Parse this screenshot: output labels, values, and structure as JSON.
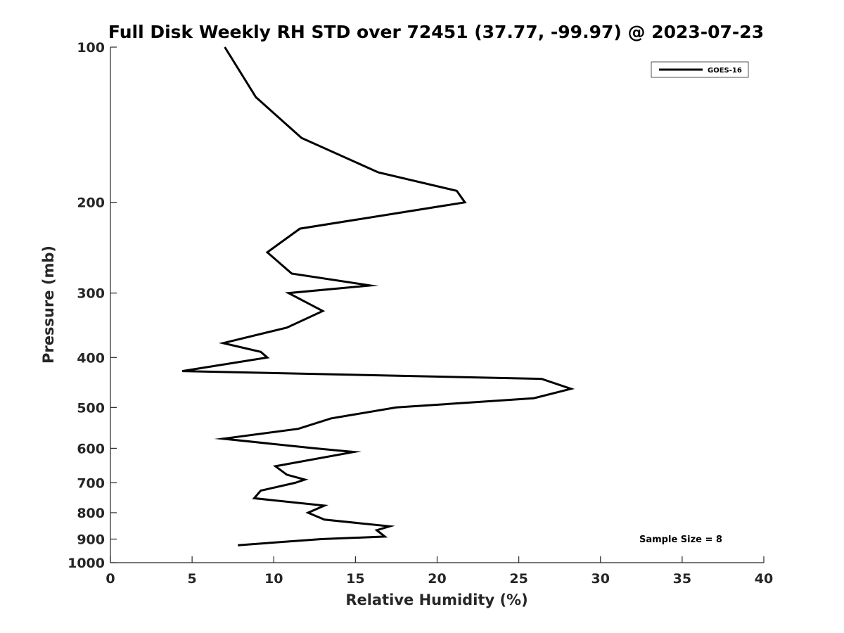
{
  "chart_data": {
    "type": "line",
    "title": "Full Disk Weekly RH STD over 72451 (37.77, -99.97) @ 2023-07-23",
    "xlabel": "Relative Humidity (%)",
    "ylabel": "Pressure (mb)",
    "xlim": [
      0,
      40
    ],
    "ylim": [
      1000,
      100
    ],
    "y_scale": "log",
    "grid": false,
    "legend_position": "top-right",
    "x_ticks": [
      0,
      5,
      10,
      15,
      20,
      25,
      30,
      35,
      40
    ],
    "y_ticks": [
      100,
      200,
      300,
      400,
      500,
      600,
      700,
      800,
      900,
      1000
    ],
    "series": [
      {
        "name": "GOES-16",
        "color": "#000000",
        "x": [
          7.0,
          8.9,
          11.7,
          16.4,
          21.2,
          21.7,
          11.6,
          9.6,
          11.1,
          15.9,
          10.9,
          13.0,
          10.8,
          6.9,
          9.2,
          9.6,
          4.4,
          26.4,
          28.2,
          25.9,
          17.5,
          13.5,
          11.5,
          6.9,
          12.5,
          14.9,
          10.1,
          10.8,
          11.9,
          11.3,
          9.2,
          8.8,
          13.1,
          12.1,
          13.1,
          17.1,
          16.3,
          16.8,
          12.9,
          7.8
        ],
        "y": [
          100,
          125,
          150,
          175,
          190,
          200,
          225,
          250,
          275,
          290,
          300,
          325,
          350,
          375,
          390,
          400,
          425,
          440,
          460,
          480,
          500,
          525,
          550,
          575,
          600,
          610,
          650,
          675,
          690,
          700,
          725,
          750,
          775,
          800,
          825,
          850,
          865,
          890,
          900,
          925
        ]
      }
    ],
    "annotations": [
      {
        "text": "Sample Size = 8",
        "position": "bottom-right"
      }
    ]
  }
}
